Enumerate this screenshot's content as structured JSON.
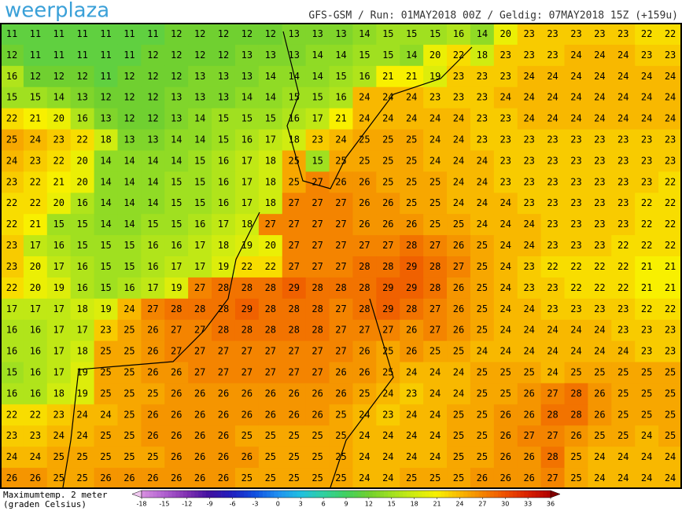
{
  "logo": "weerplaza",
  "header": "GFS-GSM / Run: 01MAY2018 00Z / Geldig: 07MAY2018 15Z (+159u)",
  "legend": {
    "label_line1": "Maximumtemp. 2 meter",
    "label_line2": "(graden Celsius)",
    "ticks": [
      -18,
      -15,
      -12,
      -9,
      -6,
      -3,
      0,
      3,
      6,
      9,
      12,
      15,
      18,
      21,
      24,
      27,
      30,
      33,
      36
    ],
    "colors": [
      "#d890e0",
      "#b060d0",
      "#8030b0",
      "#4010a0",
      "#2020c0",
      "#1050e0",
      "#2090f0",
      "#20c0e0",
      "#30d0a0",
      "#40d060",
      "#70d030",
      "#a0e020",
      "#d0ec10",
      "#f8f000",
      "#f8b800",
      "#f48400",
      "#ee5000",
      "#d82000",
      "#b00000"
    ],
    "below_color": "#f0c8f0",
    "above_color": "#800000"
  },
  "grid": [
    [
      11,
      11,
      11,
      11,
      11,
      11,
      11,
      12,
      12,
      12,
      12,
      12,
      13,
      13,
      13,
      14,
      15,
      15,
      15,
      16,
      14,
      20,
      23,
      23,
      23,
      23,
      23,
      22,
      22
    ],
    [
      12,
      11,
      11,
      11,
      11,
      11,
      12,
      12,
      12,
      12,
      13,
      13,
      13,
      14,
      14,
      15,
      15,
      14,
      20,
      22,
      18,
      23,
      23,
      23,
      24,
      24,
      24,
      23,
      23
    ],
    [
      16,
      12,
      12,
      12,
      11,
      12,
      12,
      12,
      13,
      13,
      13,
      14,
      14,
      14,
      15,
      16,
      21,
      21,
      19,
      23,
      23,
      23,
      24,
      24,
      24,
      24,
      24,
      24,
      24
    ],
    [
      15,
      15,
      14,
      13,
      12,
      12,
      12,
      13,
      13,
      13,
      14,
      14,
      15,
      15,
      16,
      24,
      24,
      24,
      23,
      23,
      23,
      24,
      24,
      24,
      24,
      24,
      24,
      24,
      24
    ],
    [
      22,
      21,
      20,
      16,
      13,
      12,
      12,
      13,
      14,
      15,
      15,
      15,
      16,
      17,
      21,
      24,
      24,
      24,
      24,
      24,
      23,
      23,
      24,
      24,
      24,
      24,
      24,
      24,
      24
    ],
    [
      25,
      24,
      23,
      22,
      18,
      13,
      13,
      14,
      14,
      15,
      16,
      17,
      18,
      23,
      24,
      25,
      25,
      25,
      24,
      24,
      23,
      23,
      23,
      23,
      23,
      23,
      23,
      23,
      23
    ],
    [
      24,
      23,
      22,
      20,
      14,
      14,
      14,
      14,
      15,
      16,
      17,
      18,
      25,
      15,
      25,
      25,
      25,
      25,
      24,
      24,
      24,
      23,
      23,
      23,
      23,
      23,
      23,
      23,
      23
    ],
    [
      23,
      22,
      21,
      20,
      14,
      14,
      14,
      15,
      15,
      16,
      17,
      18,
      25,
      27,
      26,
      26,
      25,
      25,
      25,
      24,
      24,
      23,
      23,
      23,
      23,
      23,
      23,
      23,
      22
    ],
    [
      22,
      22,
      20,
      16,
      14,
      14,
      14,
      15,
      15,
      16,
      17,
      18,
      27,
      27,
      27,
      26,
      26,
      25,
      25,
      24,
      24,
      24,
      23,
      23,
      23,
      23,
      23,
      22,
      22
    ],
    [
      22,
      21,
      15,
      15,
      14,
      14,
      15,
      15,
      16,
      17,
      18,
      27,
      27,
      27,
      27,
      26,
      26,
      26,
      25,
      25,
      24,
      24,
      24,
      23,
      23,
      23,
      23,
      22,
      22
    ],
    [
      23,
      17,
      16,
      15,
      15,
      15,
      16,
      16,
      17,
      18,
      19,
      20,
      27,
      27,
      27,
      27,
      27,
      28,
      27,
      26,
      25,
      24,
      24,
      23,
      23,
      23,
      22,
      22,
      22
    ],
    [
      23,
      20,
      17,
      16,
      15,
      15,
      16,
      17,
      17,
      19,
      22,
      22,
      27,
      27,
      27,
      28,
      28,
      29,
      28,
      27,
      25,
      24,
      23,
      22,
      22,
      22,
      22,
      21,
      21
    ],
    [
      22,
      20,
      19,
      16,
      15,
      16,
      17,
      19,
      27,
      28,
      28,
      28,
      29,
      28,
      28,
      28,
      29,
      29,
      28,
      26,
      25,
      24,
      23,
      23,
      22,
      22,
      22,
      21,
      21
    ],
    [
      17,
      17,
      17,
      18,
      19,
      24,
      27,
      28,
      28,
      28,
      29,
      28,
      28,
      28,
      27,
      28,
      29,
      28,
      27,
      26,
      25,
      24,
      24,
      23,
      23,
      23,
      23,
      22,
      22
    ],
    [
      16,
      16,
      17,
      17,
      23,
      25,
      26,
      27,
      27,
      28,
      28,
      28,
      28,
      28,
      27,
      27,
      27,
      26,
      27,
      26,
      25,
      24,
      24,
      24,
      24,
      24,
      23,
      23,
      23
    ],
    [
      16,
      16,
      17,
      18,
      25,
      25,
      26,
      27,
      27,
      27,
      27,
      27,
      27,
      27,
      27,
      26,
      25,
      26,
      25,
      25,
      24,
      24,
      24,
      24,
      24,
      24,
      24,
      23,
      23
    ],
    [
      15,
      16,
      17,
      19,
      25,
      25,
      26,
      26,
      27,
      27,
      27,
      27,
      27,
      27,
      26,
      26,
      25,
      24,
      24,
      24,
      25,
      25,
      25,
      24,
      25,
      25,
      25,
      25,
      25
    ],
    [
      16,
      16,
      18,
      19,
      25,
      25,
      25,
      26,
      26,
      26,
      26,
      26,
      26,
      26,
      26,
      25,
      24,
      23,
      24,
      24,
      25,
      25,
      26,
      27,
      28,
      26,
      25,
      25,
      25
    ],
    [
      22,
      22,
      23,
      24,
      24,
      25,
      26,
      26,
      26,
      26,
      26,
      26,
      26,
      26,
      25,
      24,
      23,
      24,
      24,
      25,
      25,
      26,
      26,
      28,
      28,
      26,
      25,
      25,
      25
    ],
    [
      23,
      23,
      24,
      24,
      25,
      25,
      26,
      26,
      26,
      26,
      25,
      25,
      25,
      25,
      25,
      24,
      24,
      24,
      24,
      25,
      25,
      26,
      27,
      27,
      26,
      25,
      25,
      24,
      25
    ],
    [
      24,
      24,
      25,
      25,
      25,
      25,
      25,
      26,
      26,
      26,
      26,
      25,
      25,
      25,
      25,
      24,
      24,
      24,
      24,
      25,
      25,
      26,
      26,
      28,
      25,
      24,
      24,
      24,
      24
    ],
    [
      26,
      26,
      25,
      25,
      26,
      26,
      26,
      26,
      26,
      26,
      25,
      25,
      25,
      25,
      25,
      24,
      24,
      25,
      25,
      25,
      26,
      26,
      26,
      27,
      25,
      24,
      24,
      24,
      24
    ]
  ]
}
